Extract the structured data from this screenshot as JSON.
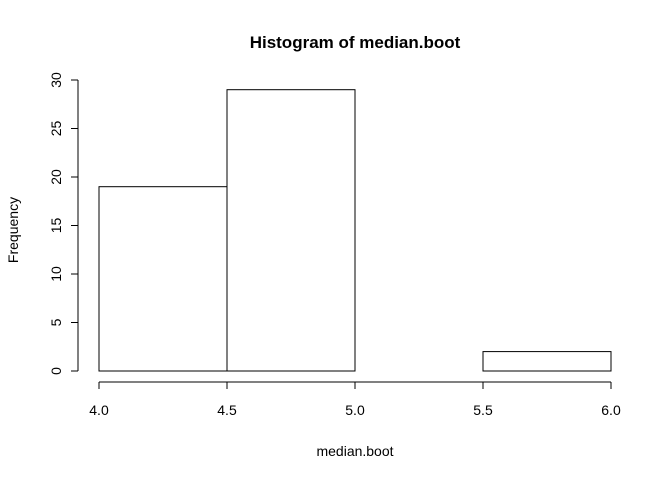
{
  "chart_data": {
    "type": "bar",
    "title": "Histogram of median.boot",
    "xlabel": "median.boot",
    "ylabel": "Frequency",
    "bins": [
      {
        "start": 4.0,
        "end": 4.5,
        "count": 19
      },
      {
        "start": 4.5,
        "end": 5.0,
        "count": 29
      },
      {
        "start": 5.0,
        "end": 5.5,
        "count": 0
      },
      {
        "start": 5.5,
        "end": 6.0,
        "count": 2
      }
    ],
    "xlim": [
      4.0,
      6.0
    ],
    "ylim": [
      0,
      30
    ],
    "xticks": [
      "4.0",
      "4.5",
      "5.0",
      "5.5",
      "6.0"
    ],
    "yticks": [
      "0",
      "5",
      "10",
      "15",
      "20",
      "25",
      "30"
    ],
    "grid": false,
    "colors": {
      "bar_fill": "#ffffff",
      "bar_stroke": "#000000"
    }
  }
}
